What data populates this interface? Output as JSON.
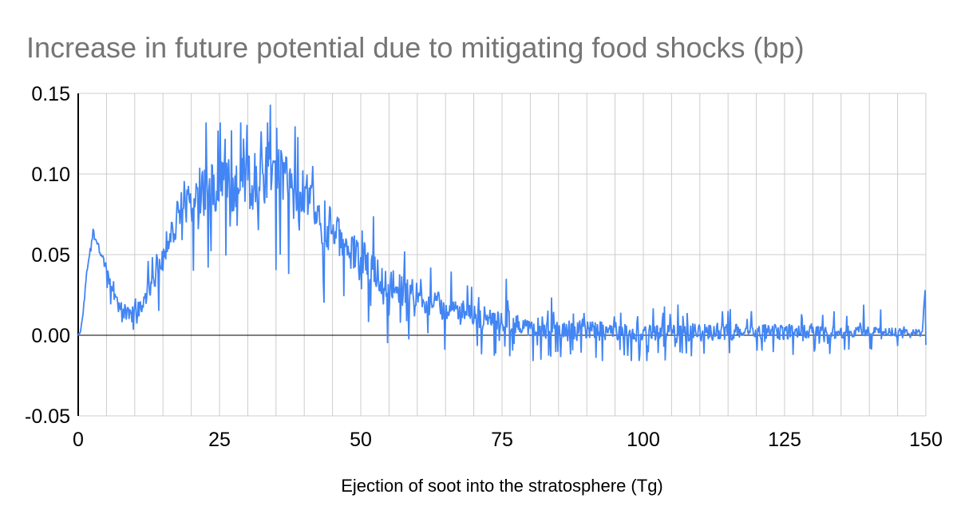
{
  "theme": {
    "background": "#ffffff",
    "title_color": "#757575",
    "grid_color": "#cccccc",
    "axis_color": "#000000",
    "tick_color": "#000000",
    "series_color": "#4285f4"
  },
  "chart_data": {
    "type": "line",
    "title": "Increase in future potential due to mitigating food shocks (bp)",
    "xlabel": "Ejection of soot into the stratosphere (Tg)",
    "ylabel": "",
    "xlim": [
      0,
      150
    ],
    "ylim": [
      -0.05,
      0.15
    ],
    "grid": true,
    "x_grid_step": 5,
    "legend": "none",
    "x_ticks": [
      {
        "value": 0,
        "label": "0"
      },
      {
        "value": 25,
        "label": "25"
      },
      {
        "value": 50,
        "label": "50"
      },
      {
        "value": 75,
        "label": "75"
      },
      {
        "value": 100,
        "label": "100"
      },
      {
        "value": 125,
        "label": "125"
      },
      {
        "value": 150,
        "label": "150"
      }
    ],
    "y_ticks": [
      {
        "value": 0.15,
        "label": "0.15"
      },
      {
        "value": 0.1,
        "label": "0.10"
      },
      {
        "value": 0.05,
        "label": "0.05"
      },
      {
        "value": 0.0,
        "label": "0.00"
      },
      {
        "value": -0.05,
        "label": "-0.05"
      }
    ],
    "zero_line": true,
    "series": [
      {
        "name": "increase-in-future-potential-bp",
        "color": "#4285f4",
        "sample_step_tg": 0.125,
        "noise_seed": 1337,
        "spike_probability": 0.12,
        "downward_spike_bias": 0.58,
        "clamp": [
          -0.016,
          0.132
        ],
        "envelope_keypoints": [
          [
            0,
            0.0
          ],
          [
            0.4,
            0.002
          ],
          [
            0.8,
            0.012
          ],
          [
            1.2,
            0.028
          ],
          [
            1.6,
            0.042
          ],
          [
            2.0,
            0.052
          ],
          [
            2.4,
            0.06
          ],
          [
            2.8,
            0.063
          ],
          [
            3.2,
            0.06
          ],
          [
            3.6,
            0.056
          ],
          [
            4.0,
            0.051
          ],
          [
            4.5,
            0.045
          ],
          [
            5,
            0.04
          ],
          [
            5.5,
            0.034
          ],
          [
            6,
            0.029
          ],
          [
            6.5,
            0.024
          ],
          [
            7,
            0.02
          ],
          [
            7.5,
            0.017
          ],
          [
            8,
            0.015
          ],
          [
            9,
            0.013
          ],
          [
            10,
            0.013
          ],
          [
            11,
            0.016
          ],
          [
            12,
            0.022
          ],
          [
            13,
            0.032
          ],
          [
            14,
            0.042
          ],
          [
            15,
            0.05
          ],
          [
            16,
            0.06
          ],
          [
            17,
            0.07
          ],
          [
            18,
            0.078
          ],
          [
            19,
            0.084
          ],
          [
            20,
            0.087
          ],
          [
            21,
            0.088
          ],
          [
            22,
            0.09
          ],
          [
            23,
            0.092
          ],
          [
            24,
            0.094
          ],
          [
            25,
            0.093
          ],
          [
            26,
            0.092
          ],
          [
            27,
            0.091
          ],
          [
            28,
            0.092
          ],
          [
            29,
            0.094
          ],
          [
            30,
            0.095
          ],
          [
            31,
            0.096
          ],
          [
            32,
            0.098
          ],
          [
            33,
            0.1
          ],
          [
            34,
            0.102
          ],
          [
            35,
            0.1
          ],
          [
            36,
            0.098
          ],
          [
            37,
            0.094
          ],
          [
            38,
            0.09
          ],
          [
            39,
            0.088
          ],
          [
            40,
            0.086
          ],
          [
            41,
            0.08
          ],
          [
            42,
            0.075
          ],
          [
            43,
            0.071
          ],
          [
            44,
            0.068
          ],
          [
            45,
            0.064
          ],
          [
            46,
            0.06
          ],
          [
            47,
            0.056
          ],
          [
            48,
            0.052
          ],
          [
            49,
            0.049
          ],
          [
            50,
            0.046
          ],
          [
            52,
            0.04
          ],
          [
            54,
            0.036
          ],
          [
            56,
            0.031
          ],
          [
            58,
            0.027
          ],
          [
            60,
            0.024
          ],
          [
            62,
            0.021
          ],
          [
            64,
            0.018
          ],
          [
            66,
            0.016
          ],
          [
            68,
            0.014
          ],
          [
            70,
            0.012
          ],
          [
            72,
            0.01
          ],
          [
            74,
            0.009
          ],
          [
            76,
            0.009
          ],
          [
            78,
            0.007
          ],
          [
            80,
            0.006
          ],
          [
            82,
            0.005
          ],
          [
            84,
            0.004
          ],
          [
            86,
            0.003
          ],
          [
            88,
            0.003
          ],
          [
            90,
            0.002
          ],
          [
            95,
            0.002
          ],
          [
            100,
            0.001
          ],
          [
            105,
            0.002
          ],
          [
            110,
            0.002
          ],
          [
            115,
            0.002
          ],
          [
            120,
            0.002
          ],
          [
            125,
            0.002
          ],
          [
            130,
            0.002
          ],
          [
            135,
            0.002
          ],
          [
            140,
            0.002
          ],
          [
            145,
            0.002
          ],
          [
            149.4,
            0.002
          ],
          [
            149.8,
            0.026
          ],
          [
            150,
            -0.004
          ]
        ],
        "noise_amplitude_keypoints": [
          [
            0,
            0.0005
          ],
          [
            1,
            0.002
          ],
          [
            2,
            0.003
          ],
          [
            3,
            0.003
          ],
          [
            4,
            0.004
          ],
          [
            6,
            0.005
          ],
          [
            8,
            0.006
          ],
          [
            10,
            0.007
          ],
          [
            12,
            0.009
          ],
          [
            14,
            0.012
          ],
          [
            16,
            0.014
          ],
          [
            18,
            0.016
          ],
          [
            20,
            0.018
          ],
          [
            22,
            0.02
          ],
          [
            25,
            0.021
          ],
          [
            28,
            0.021
          ],
          [
            31,
            0.022
          ],
          [
            34,
            0.023
          ],
          [
            37,
            0.022
          ],
          [
            40,
            0.02
          ],
          [
            43,
            0.019
          ],
          [
            46,
            0.017
          ],
          [
            49,
            0.016
          ],
          [
            52,
            0.014
          ],
          [
            55,
            0.013
          ],
          [
            58,
            0.012
          ],
          [
            61,
            0.011
          ],
          [
            64,
            0.01
          ],
          [
            67,
            0.01
          ],
          [
            70,
            0.009
          ],
          [
            73,
            0.009
          ],
          [
            76,
            0.009
          ],
          [
            80,
            0.008
          ],
          [
            85,
            0.008
          ],
          [
            90,
            0.008
          ],
          [
            95,
            0.008
          ],
          [
            100,
            0.008
          ],
          [
            105,
            0.007
          ],
          [
            110,
            0.007
          ],
          [
            115,
            0.007
          ],
          [
            120,
            0.006
          ],
          [
            125,
            0.006
          ],
          [
            130,
            0.005
          ],
          [
            135,
            0.005
          ],
          [
            140,
            0.004
          ],
          [
            145,
            0.003
          ],
          [
            149,
            0.002
          ],
          [
            150,
            0.002
          ]
        ],
        "notable_points": [
          [
            2.6,
            0.066
          ],
          [
            20.4,
            0.04
          ],
          [
            23.0,
            0.042
          ],
          [
            24.7,
            0.127
          ],
          [
            29.3,
            0.122
          ],
          [
            34.0,
            0.143
          ],
          [
            35.7,
            0.05
          ],
          [
            37.2,
            0.038
          ],
          [
            41.5,
            0.105
          ],
          [
            44.5,
            0.08
          ],
          [
            50.2,
            0.065
          ],
          [
            57.8,
            0.052
          ],
          [
            62.4,
            0.042
          ],
          [
            75.8,
            0.035
          ],
          [
            96,
            0.014
          ],
          [
            107,
            0.012
          ],
          [
            115,
            0.015
          ],
          [
            128,
            0.013
          ],
          [
            136,
            0.012
          ],
          [
            139,
            0.019
          ],
          [
            142,
            0.016
          ],
          [
            149.875,
            0.028
          ],
          [
            150,
            -0.006
          ]
        ]
      }
    ]
  }
}
